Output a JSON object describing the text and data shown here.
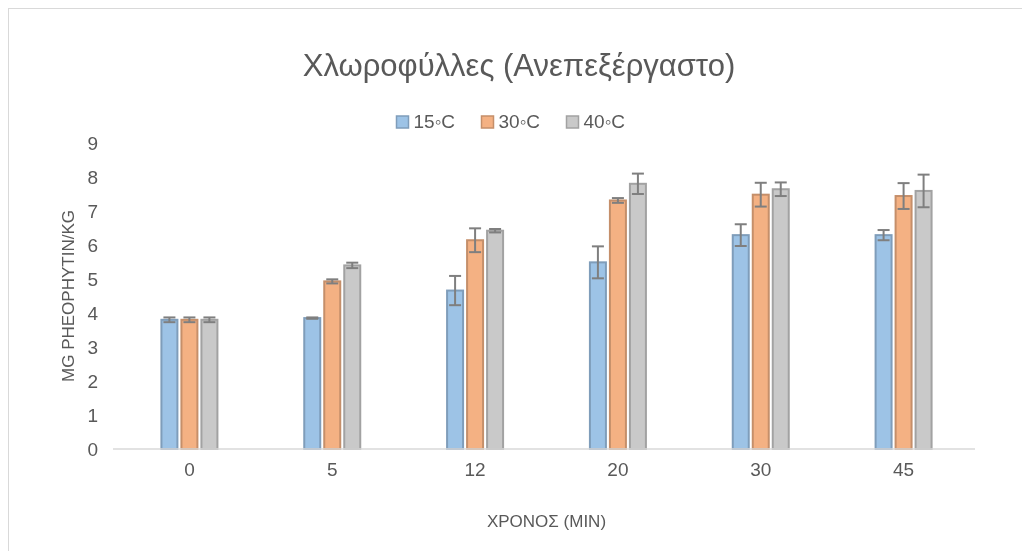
{
  "chart_data": {
    "type": "bar",
    "title": "Χλωροφύλλες (Ανεπεξέργαστο)",
    "xlabel": "ΧΡΟΝΟΣ (MIN)",
    "ylabel": "MG PHEOPHYTIN/KG",
    "categories": [
      "0",
      "5",
      "12",
      "20",
      "30",
      "45"
    ],
    "series": [
      {
        "name": "15◦C",
        "color": "#9dc3e6",
        "values": [
          3.8,
          3.85,
          4.66,
          5.49,
          6.29,
          6.29
        ],
        "errors": [
          0.07,
          0.02,
          0.43,
          0.47,
          0.32,
          0.15
        ]
      },
      {
        "name": "30◦C",
        "color": "#f4b183",
        "values": [
          3.8,
          4.93,
          6.14,
          7.31,
          7.48,
          7.44
        ],
        "errors": [
          0.07,
          0.06,
          0.35,
          0.07,
          0.35,
          0.38
        ]
      },
      {
        "name": "40◦C",
        "color": "#c9c9c9",
        "values": [
          3.8,
          5.4,
          6.42,
          7.8,
          7.64,
          7.59
        ],
        "errors": [
          0.07,
          0.08,
          0.05,
          0.3,
          0.2,
          0.48
        ]
      }
    ],
    "ylim": [
      0,
      9
    ],
    "yticks": [
      0,
      1,
      2,
      3,
      4,
      5,
      6,
      7,
      8,
      9
    ],
    "grid": false,
    "legend": "top"
  }
}
